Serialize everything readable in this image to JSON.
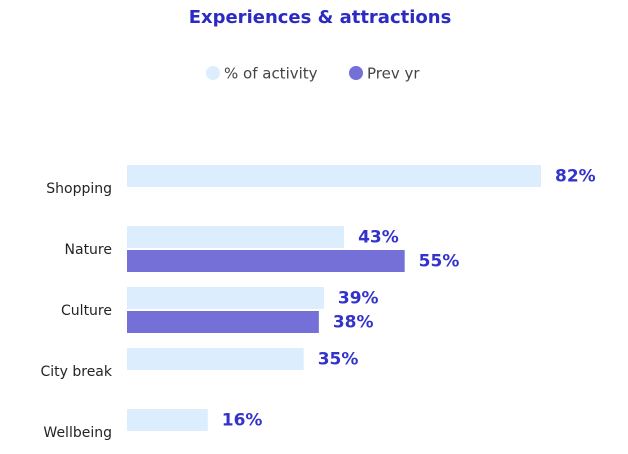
{
  "chart_data": {
    "type": "hbar",
    "title": "Experiences & attractions",
    "categories": [
      "Shopping",
      "Nature",
      "Culture",
      "City break",
      "Wellbeing"
    ],
    "series": [
      {
        "name": "% of activity",
        "color": "#dcedfd",
        "values": [
          82,
          43,
          39,
          35,
          16
        ],
        "value_labels": [
          "82%",
          "43%",
          "39%",
          "35%",
          "16%"
        ]
      },
      {
        "name": "Prev yr",
        "color": "#7470d8",
        "values": [
          null,
          55,
          38,
          null,
          null
        ],
        "value_labels": [
          null,
          "55%",
          "38%",
          null,
          null
        ]
      }
    ]
  }
}
